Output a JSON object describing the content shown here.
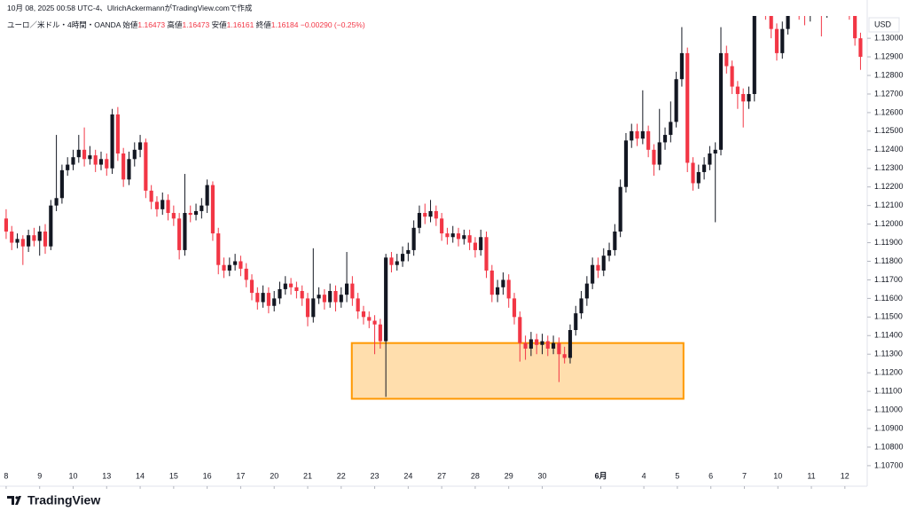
{
  "header": {
    "credit": "10月 08, 2025 00:58 UTC-4、UlrichAckermannがTradingView.comで作成",
    "symbol": "ユーロ／米ドル・4時間・OANDA",
    "ohlc": [
      {
        "label": "始値",
        "value": "1.16473"
      },
      {
        "label": "高値",
        "value": "1.16473"
      },
      {
        "label": "安値",
        "value": "1.16161"
      },
      {
        "label": "終値",
        "value": "1.16184"
      }
    ],
    "change": "−0.00290 (−0.25%)"
  },
  "footer": {
    "logo": "TradingView"
  },
  "chart_data": {
    "type": "candlestick",
    "currency": "USD",
    "up_color": "#131722",
    "down_color": "#f23645",
    "xlim": [
      -1.1,
      154.2
    ],
    "xticks": [
      {
        "value": 0,
        "label": "8"
      },
      {
        "value": 6,
        "label": "9"
      },
      {
        "value": 12,
        "label": "10"
      },
      {
        "value": 18,
        "label": "13"
      },
      {
        "value": 24,
        "label": "14"
      },
      {
        "value": 30,
        "label": "15"
      },
      {
        "value": 36,
        "label": "16"
      },
      {
        "value": 42,
        "label": "17"
      },
      {
        "value": 48,
        "label": "20"
      },
      {
        "value": 54,
        "label": "21"
      },
      {
        "value": 60,
        "label": "22"
      },
      {
        "value": 66,
        "label": "23"
      },
      {
        "value": 72,
        "label": "24"
      },
      {
        "value": 78,
        "label": "27"
      },
      {
        "value": 84,
        "label": "28"
      },
      {
        "value": 90,
        "label": "29"
      },
      {
        "value": 96,
        "label": "30"
      },
      {
        "value": 106.5,
        "label": "6月"
      },
      {
        "value": 114.2,
        "label": "4"
      },
      {
        "value": 120.2,
        "label": "5"
      },
      {
        "value": 126.2,
        "label": "6"
      },
      {
        "value": 132.2,
        "label": "7"
      },
      {
        "value": 138.2,
        "label": "10"
      },
      {
        "value": 144.2,
        "label": "11"
      },
      {
        "value": 150.2,
        "label": "12"
      }
    ],
    "ylim": [
      1.1069,
      1.1312
    ],
    "yticks": [
      {
        "value": 1.107,
        "label": "1.10700"
      },
      {
        "value": 1.108,
        "label": "1.10800"
      },
      {
        "value": 1.109,
        "label": "1.10900"
      },
      {
        "value": 1.11,
        "label": "1.11000"
      },
      {
        "value": 1.111,
        "label": "1.11100"
      },
      {
        "value": 1.112,
        "label": "1.11200"
      },
      {
        "value": 1.113,
        "label": "1.11300"
      },
      {
        "value": 1.114,
        "label": "1.11400"
      },
      {
        "value": 1.115,
        "label": "1.11500"
      },
      {
        "value": 1.116,
        "label": "1.11600"
      },
      {
        "value": 1.117,
        "label": "1.11700"
      },
      {
        "value": 1.118,
        "label": "1.11800"
      },
      {
        "value": 1.119,
        "label": "1.11900"
      },
      {
        "value": 1.12,
        "label": "1.12000"
      },
      {
        "value": 1.121,
        "label": "1.12100"
      },
      {
        "value": 1.122,
        "label": "1.12200"
      },
      {
        "value": 1.123,
        "label": "1.12300"
      },
      {
        "value": 1.124,
        "label": "1.12400"
      },
      {
        "value": 1.125,
        "label": "1.12500"
      },
      {
        "value": 1.126,
        "label": "1.12600"
      },
      {
        "value": 1.127,
        "label": "1.12700"
      },
      {
        "value": 1.128,
        "label": "1.12800"
      },
      {
        "value": 1.129,
        "label": "1.12900"
      },
      {
        "value": 1.13,
        "label": "1.13000"
      }
    ],
    "zone": {
      "x": [
        61.9,
        121.3
      ],
      "y": [
        1.1106,
        1.1136
      ],
      "color": "#ff9800"
    },
    "open": [
      1.1203,
      1.1196,
      1.119,
      1.1192,
      1.1188,
      1.1194,
      1.1191,
      1.1196,
      1.1188,
      1.121,
      1.1214,
      1.1229,
      1.1232,
      1.1236,
      1.124,
      1.1235,
      1.1237,
      1.1232,
      1.1235,
      1.123,
      1.1259,
      1.1238,
      1.1224,
      1.1235,
      1.124,
      1.1244,
      1.1218,
      1.1212,
      1.1208,
      1.1213,
      1.1206,
      1.1203,
      1.1186,
      1.1206,
      1.1205,
      1.1207,
      1.121,
      1.1221,
      1.1195,
      1.1178,
      1.1175,
      1.1178,
      1.118,
      1.1176,
      1.117,
      1.1163,
      1.1158,
      1.1163,
      1.1156,
      1.116,
      1.1165,
      1.1168,
      1.1166,
      1.1164,
      1.116,
      1.115,
      1.116,
      1.1162,
      1.1158,
      1.1164,
      1.1158,
      1.1162,
      1.1168,
      1.116,
      1.1153,
      1.115,
      1.1148,
      1.1146,
      1.1137,
      1.1182,
      1.1178,
      1.118,
      1.1184,
      1.1186,
      1.1198,
      1.1206,
      1.1204,
      1.1207,
      1.1203,
      1.1195,
      1.1193,
      1.1195,
      1.1192,
      1.1194,
      1.119,
      1.1186,
      1.1193,
      1.1175,
      1.1162,
      1.1166,
      1.117,
      1.116,
      1.115,
      1.1136,
      1.1133,
      1.1138,
      1.1135,
      1.1137,
      1.1133,
      1.1136,
      1.113,
      1.1128,
      1.1143,
      1.1152,
      1.116,
      1.1168,
      1.1178,
      1.1175,
      1.1183,
      1.1186,
      1.1196,
      1.122,
      1.1245,
      1.125,
      1.1246,
      1.125,
      1.124,
      1.1232,
      1.1244,
      1.1248,
      1.1255,
      1.1278,
      1.1292,
      1.1233,
      1.1222,
      1.1228,
      1.1232,
      1.1238,
      1.124,
      1.1292,
      1.1285,
      1.1274,
      1.127,
      1.1266,
      1.127,
      1.1316,
      1.1318,
      1.1314,
      1.1305,
      1.1292,
      1.1305,
      1.1318,
      1.1316,
      1.1314,
      1.1312,
      1.1318,
      1.1316,
      1.1315,
      1.1318,
      1.1317,
      1.1316,
      1.1318,
      1.1314,
      1.13
    ],
    "high": [
      1.1208,
      1.1199,
      1.1195,
      1.1194,
      1.1197,
      1.1198,
      1.1199,
      1.12,
      1.1213,
      1.1248,
      1.1232,
      1.1236,
      1.124,
      1.1248,
      1.1252,
      1.1242,
      1.124,
      1.1239,
      1.1238,
      1.1262,
      1.1263,
      1.1241,
      1.1239,
      1.1244,
      1.1248,
      1.1246,
      1.1221,
      1.1215,
      1.1217,
      1.1216,
      1.121,
      1.1206,
      1.1227,
      1.121,
      1.1211,
      1.1214,
      1.1224,
      1.1223,
      1.1198,
      1.1182,
      1.1182,
      1.1184,
      1.1183,
      1.1179,
      1.1173,
      1.1166,
      1.1167,
      1.1166,
      1.1164,
      1.1169,
      1.1172,
      1.1171,
      1.1169,
      1.1167,
      1.1163,
      1.1187,
      1.1166,
      1.1165,
      1.1168,
      1.1167,
      1.1166,
      1.1185,
      1.1172,
      1.1163,
      1.1156,
      1.1153,
      1.1151,
      1.1149,
      1.1184,
      1.1185,
      1.1184,
      1.1188,
      1.119,
      1.1202,
      1.121,
      1.1211,
      1.1213,
      1.121,
      1.1206,
      1.1198,
      1.1199,
      1.1198,
      1.1197,
      1.1197,
      1.1193,
      1.1197,
      1.1196,
      1.1178,
      1.117,
      1.1174,
      1.1173,
      1.1163,
      1.1153,
      1.114,
      1.1142,
      1.1141,
      1.1141,
      1.114,
      1.114,
      1.1139,
      1.1134,
      1.1146,
      1.1156,
      1.1164,
      1.1172,
      1.1182,
      1.1182,
      1.1187,
      1.119,
      1.12,
      1.1224,
      1.1249,
      1.1254,
      1.1254,
      1.1272,
      1.1253,
      1.1243,
      1.1262,
      1.1252,
      1.1266,
      1.1282,
      1.1306,
      1.1295,
      1.1236,
      1.1232,
      1.1236,
      1.1242,
      1.1244,
      1.1306,
      1.1296,
      1.1288,
      1.1277,
      1.1273,
      1.1274,
      1.132,
      1.1322,
      1.1321,
      1.1317,
      1.1308,
      1.1309,
      1.1322,
      1.1321,
      1.1319,
      1.1318,
      1.1322,
      1.1321,
      1.1319,
      1.1322,
      1.1321,
      1.132,
      1.1322,
      1.1321,
      1.1317,
      1.1303
    ],
    "low": [
      1.1192,
      1.1186,
      1.1187,
      1.1178,
      1.1185,
      1.1188,
      1.1183,
      1.1184,
      1.1186,
      1.1207,
      1.1211,
      1.1226,
      1.1229,
      1.1233,
      1.1231,
      1.1232,
      1.1228,
      1.1229,
      1.1226,
      1.1227,
      1.1234,
      1.122,
      1.1221,
      1.1231,
      1.1236,
      1.1214,
      1.1208,
      1.1204,
      1.1205,
      1.1202,
      1.1199,
      1.1181,
      1.1183,
      1.1201,
      1.1202,
      1.1203,
      1.1206,
      1.1191,
      1.1173,
      1.1171,
      1.1172,
      1.1175,
      1.1172,
      1.1166,
      1.1159,
      1.1154,
      1.1155,
      1.1152,
      1.1153,
      1.1157,
      1.1162,
      1.1162,
      1.116,
      1.1156,
      1.1145,
      1.1147,
      1.1157,
      1.1154,
      1.1155,
      1.1153,
      1.1155,
      1.1158,
      1.1156,
      1.1149,
      1.1146,
      1.1144,
      1.113,
      1.1133,
      1.1107,
      1.1174,
      1.1175,
      1.1177,
      1.118,
      1.1183,
      1.1195,
      1.12,
      1.1201,
      1.1199,
      1.1191,
      1.1189,
      1.119,
      1.1188,
      1.1189,
      1.1186,
      1.1182,
      1.1183,
      1.1171,
      1.1158,
      1.1158,
      1.1162,
      1.1155,
      1.1146,
      1.1126,
      1.1127,
      1.1129,
      1.113,
      1.113,
      1.1129,
      1.113,
      1.1115,
      1.1125,
      1.1125,
      1.114,
      1.1149,
      1.1156,
      1.1165,
      1.1171,
      1.1172,
      1.118,
      1.1183,
      1.1193,
      1.1217,
      1.1241,
      1.1242,
      1.1243,
      1.1236,
      1.1226,
      1.1229,
      1.124,
      1.1244,
      1.1252,
      1.1274,
      1.1228,
      1.1218,
      1.1219,
      1.1224,
      1.1229,
      1.1201,
      1.1237,
      1.1281,
      1.127,
      1.1262,
      1.1252,
      1.1262,
      1.1266,
      1.1312,
      1.131,
      1.13,
      1.1288,
      1.1289,
      1.1302,
      1.1312,
      1.131,
      1.1307,
      1.1309,
      1.1312,
      1.1301,
      1.1311,
      1.1313,
      1.1312,
      1.1313,
      1.131,
      1.1296,
      1.1283
    ],
    "close": [
      1.1196,
      1.119,
      1.1192,
      1.1188,
      1.1194,
      1.1191,
      1.1196,
      1.1188,
      1.121,
      1.1214,
      1.1229,
      1.1232,
      1.1236,
      1.124,
      1.1235,
      1.1237,
      1.1232,
      1.1235,
      1.123,
      1.1259,
      1.1238,
      1.1224,
      1.1235,
      1.124,
      1.1244,
      1.1218,
      1.1212,
      1.1208,
      1.1213,
      1.1206,
      1.1203,
      1.1186,
      1.1206,
      1.1205,
      1.1207,
      1.121,
      1.1221,
      1.1195,
      1.1178,
      1.1175,
      1.1178,
      1.118,
      1.1176,
      1.117,
      1.1163,
      1.1158,
      1.1163,
      1.1156,
      1.116,
      1.1165,
      1.1168,
      1.1166,
      1.1164,
      1.116,
      1.115,
      1.116,
      1.1162,
      1.1158,
      1.1164,
      1.1158,
      1.1162,
      1.1168,
      1.116,
      1.1153,
      1.115,
      1.1148,
      1.1146,
      1.1137,
      1.1182,
      1.1178,
      1.118,
      1.1184,
      1.1186,
      1.1198,
      1.1206,
      1.1204,
      1.1207,
      1.1203,
      1.1195,
      1.1193,
      1.1195,
      1.1192,
      1.1194,
      1.119,
      1.1186,
      1.1193,
      1.1175,
      1.1162,
      1.1166,
      1.117,
      1.116,
      1.115,
      1.1136,
      1.1133,
      1.1138,
      1.1135,
      1.1137,
      1.1133,
      1.1136,
      1.113,
      1.1128,
      1.1143,
      1.1152,
      1.116,
      1.1168,
      1.1178,
      1.1175,
      1.1183,
      1.1186,
      1.1196,
      1.122,
      1.1245,
      1.125,
      1.1246,
      1.125,
      1.124,
      1.1232,
      1.1244,
      1.1248,
      1.1255,
      1.1278,
      1.1292,
      1.1233,
      1.1222,
      1.1228,
      1.1232,
      1.1238,
      1.124,
      1.1292,
      1.1285,
      1.1274,
      1.127,
      1.1266,
      1.127,
      1.1316,
      1.1318,
      1.1314,
      1.1305,
      1.1292,
      1.1305,
      1.1318,
      1.1316,
      1.1314,
      1.1312,
      1.1318,
      1.1316,
      1.1315,
      1.1318,
      1.1317,
      1.1316,
      1.1318,
      1.1314,
      1.13,
      1.129
    ]
  }
}
